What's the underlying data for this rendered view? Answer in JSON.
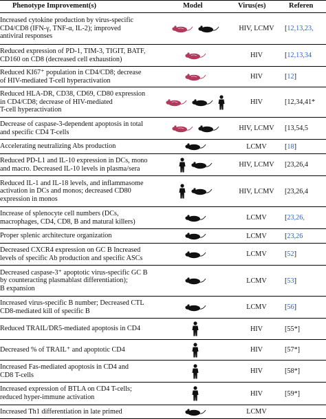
{
  "table": {
    "headers": {
      "phenotype": "Phenotype Improvement(s)",
      "model": "Model",
      "virus": "Virus(es)",
      "refs": "Referen"
    },
    "rows": [
      {
        "lines": [
          "Increased cytokine production by virus-specific",
          "CD4/CD8 (IFN-γ, TNF-α, IL-2); improved",
          "antiviral responses"
        ],
        "models": [
          "mouse-pink",
          "mouse-black"
        ],
        "virus": "HIV, LCMV",
        "refs_open": "[",
        "refs_link": "12,13,23,",
        "refs_close": ""
      },
      {
        "lines": [
          "Reduced expression of PD-1, TIM-3, TIGIT, BATF,",
          "CD160 on CD8 (decreased cell exhaustion)"
        ],
        "models": [
          "mouse-pink"
        ],
        "virus": "HIV",
        "refs_open": "[",
        "refs_link": "12,13,34",
        "refs_close": ""
      },
      {
        "lines": [
          "Reduced KI67⁺ population in CD4/CD8; decrease",
          "of HIV-mediated T-cell hyperactivation"
        ],
        "models": [
          "mouse-pink"
        ],
        "virus": "HIV",
        "refs_open": "[",
        "refs_link": "12",
        "refs_close": "]"
      },
      {
        "lines": [
          "Reduced HLA-DR, CD38, CD69, CD80 expression",
          "in CD4/CD8; decrease of HIV-mediated",
          "T-cell hyperactivation"
        ],
        "models": [
          "mouse-pink",
          "mouse-black",
          "human"
        ],
        "virus": "HIV",
        "refs_open": "[12,34,41*",
        "refs_link": "",
        "refs_close": ""
      },
      {
        "lines": [
          "Decrease of caspase-3-dependent apoptosis in total",
          "and specific CD4 T-cells"
        ],
        "models": [
          "mouse-pink",
          "mouse-black"
        ],
        "virus": "HIV, LCMV",
        "refs_open": "[13,54,5",
        "refs_link": "",
        "refs_close": ""
      },
      {
        "lines": [
          "Accelerating neutralizing Abs production"
        ],
        "models": [
          "mouse-black"
        ],
        "virus": "LCMV",
        "refs_open": "[",
        "refs_link": "18",
        "refs_close": "]"
      },
      {
        "lines": [
          "Reduced PD-L1 and IL-10 expression in DCs, mono",
          "and macro. Decreased IL-10 levels in plasma/sera"
        ],
        "models": [
          "human",
          "mouse-black"
        ],
        "virus": "HIV, LCMV",
        "refs_open": "[23,26,4",
        "refs_link": "",
        "refs_close": ""
      },
      {
        "lines": [
          "Reduced IL-1 and IL-18 levels, and inflammasome",
          "activation in DCs and monos; decreased CD80",
          "expression in monos"
        ],
        "models": [
          "human",
          "mouse-black"
        ],
        "virus": "HIV, LCMV",
        "refs_open": "[23,26,4",
        "refs_link": "",
        "refs_close": ""
      },
      {
        "lines": [
          "Increase of splenocyte cell numbers (DCs,",
          "macrophages, CD4, CD8, B and matural killers)"
        ],
        "models": [
          "mouse-black"
        ],
        "virus": "LCMV",
        "refs_open": "[",
        "refs_link": "23,26,",
        "refs_close": ""
      },
      {
        "lines": [
          "Proper splenic architecture organization"
        ],
        "models": [
          "mouse-black"
        ],
        "virus": "LCMV",
        "refs_open": "[",
        "refs_link": "23,26",
        "refs_close": ""
      },
      {
        "lines": [
          "Decreased CXCR4 expression on GC B Increased",
          "levels of specific Ab production and specific ASCs"
        ],
        "models": [
          "mouse-black"
        ],
        "virus": "LCMV",
        "refs_open": "[",
        "refs_link": "52",
        "refs_close": "]"
      },
      {
        "lines": [
          "Decreased caspase-3⁺ apoptotic virus-specific GC B",
          "by counteracting plasmablast differentiation);",
          "B expansion"
        ],
        "models": [
          "mouse-black"
        ],
        "virus": "LCMV",
        "refs_open": "[",
        "refs_link": "53",
        "refs_close": "]"
      },
      {
        "lines": [
          "Increased virus-specific B number; Decreased CTL",
          "CD8-mediated kill of specific B"
        ],
        "models": [
          "mouse-black"
        ],
        "virus": "LCMV",
        "refs_open": "[",
        "refs_link": "56",
        "refs_close": "]"
      },
      {
        "lines": [
          "Reduced TRAIL/DR5-mediated apoptosis in CD4"
        ],
        "models": [
          "human"
        ],
        "virus": "HIV",
        "refs_open": "[55*]",
        "refs_link": "",
        "refs_close": ""
      },
      {
        "lines": [
          "Decreased % of TRAIL⁺ and apoptotic CD4"
        ],
        "models": [
          "human"
        ],
        "virus": "HIV",
        "refs_open": "[57*]",
        "refs_link": "",
        "refs_close": ""
      },
      {
        "lines": [
          "Increased Fas-mediated apoptosis in CD4 and",
          "CD8 T-cells"
        ],
        "models": [
          "human"
        ],
        "virus": "HIV",
        "refs_open": "[58*]",
        "refs_link": "",
        "refs_close": ""
      },
      {
        "lines": [
          "Increased expression of BTLA on CD4 T-cells;",
          "reduced hyper-immune activation"
        ],
        "models": [
          "human"
        ],
        "virus": "HIV",
        "refs_open": "[59*]",
        "refs_link": "",
        "refs_close": ""
      },
      {
        "lines": [
          "Increased Th1 differentiation in late primed"
        ],
        "models": [
          "mouse-black"
        ],
        "virus": "LCMV",
        "refs_open": "",
        "refs_link": "",
        "refs_close": ""
      }
    ]
  }
}
